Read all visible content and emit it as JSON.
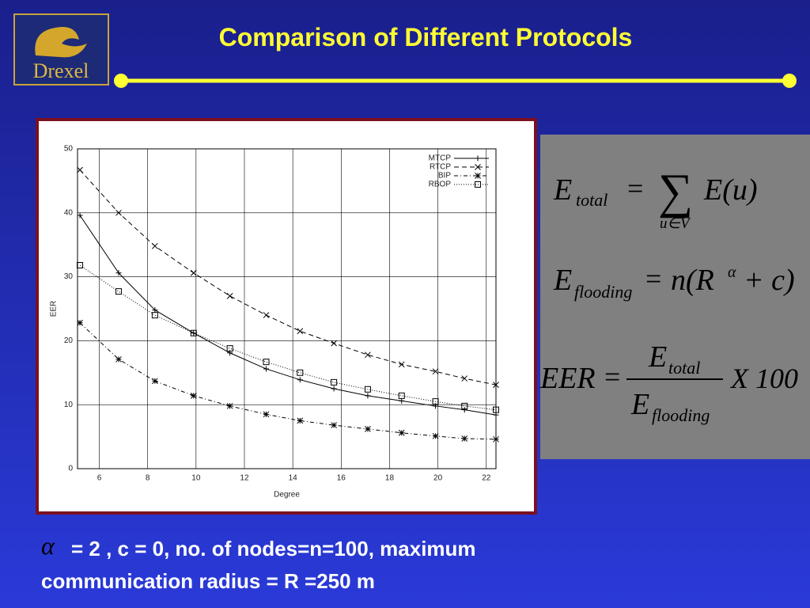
{
  "logo": {
    "text": "Drexel"
  },
  "title": "Comparison of Different Protocols",
  "chart_data": {
    "type": "line",
    "x_label": "Degree",
    "y_label": "EER",
    "x": [
      5.2,
      6.8,
      8.3,
      9.9,
      11.4,
      12.9,
      14.3,
      15.7,
      17.1,
      18.5,
      19.9,
      21.1,
      22.4
    ],
    "series": [
      {
        "name": "MTCP",
        "color": "#000000",
        "marker": "plus",
        "dash": "none",
        "values": [
          39.6,
          30.6,
          24.8,
          21.2,
          18.1,
          15.6,
          13.9,
          12.5,
          11.4,
          10.6,
          9.8,
          9.2,
          8.4
        ]
      },
      {
        "name": "RTCP",
        "color": "#000000",
        "marker": "cross",
        "dash": "6,4",
        "values": [
          46.7,
          40,
          34.8,
          30.6,
          27,
          24,
          21.5,
          19.6,
          17.8,
          16.3,
          15.2,
          14.1,
          13.1
        ]
      },
      {
        "name": "BIP",
        "color": "#000000",
        "marker": "star",
        "dash": "5,3,1,3",
        "values": [
          22.8,
          17.1,
          13.7,
          11.4,
          9.8,
          8.5,
          7.5,
          6.8,
          6.2,
          5.6,
          5.1,
          4.7,
          4.6
        ]
      },
      {
        "name": "RBOP",
        "color": "#000000",
        "marker": "square",
        "dash": "1,2",
        "values": [
          31.8,
          27.7,
          24.0,
          21.2,
          18.8,
          16.7,
          15.0,
          13.5,
          12.4,
          11.4,
          10.5,
          9.8,
          9.2
        ]
      }
    ],
    "xlim": [
      5.1,
      22.4
    ],
    "xticks": [
      6,
      8,
      10,
      12,
      14,
      16,
      18,
      20,
      22
    ],
    "ylim": [
      0,
      50
    ],
    "yticks": [
      0,
      10,
      20,
      30,
      40,
      50
    ],
    "grid": true,
    "legend": "upper right"
  },
  "formulas": {
    "f1": {
      "E": "E",
      "sub": "total",
      "eq": "=",
      "sum": "∑",
      "rhs": "E(u)",
      "under": "u∈V"
    },
    "f2": {
      "E": "E",
      "sub": "flooding",
      "eq": "=",
      "rhs": "n(R",
      "sup": "α",
      "tail": "+ c)"
    },
    "f3": {
      "lhs": "EER",
      "eq": "=",
      "numE": "E",
      "numSub": "total",
      "denE": "E",
      "denSub": "flooding",
      "tail": "X 100"
    }
  },
  "note": {
    "symbol": "α",
    "line1": "= 2 , c = 0, no. of nodes=n=100, maximum",
    "line2": "communication radius = R =250 m"
  }
}
